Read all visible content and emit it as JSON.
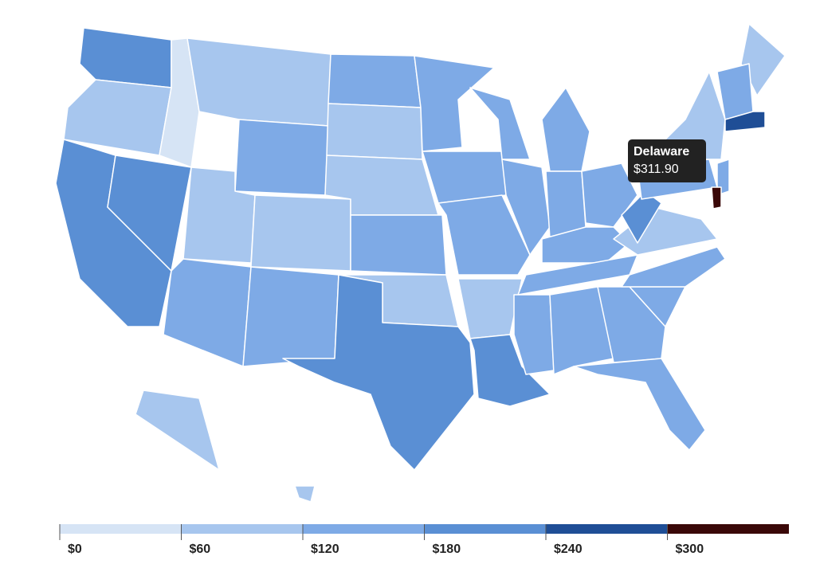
{
  "chart_data": {
    "type": "choropleth",
    "values": [
      205,
      110,
      200,
      190,
      55,
      100,
      130,
      60,
      100,
      140,
      130,
      120,
      100,
      110,
      140,
      100,
      205,
      125,
      120,
      125,
      95,
      200,
      130,
      125,
      135,
      165,
      120,
      135,
      155,
      160,
      175,
      150,
      135,
      165,
      170,
      105,
      180,
      160,
      100,
      280,
      115,
      150,
      140,
      311.9,
      105,
      95
    ],
    "legend": {
      "xlim": [
        0,
        360
      ],
      "bins": [
        0,
        60,
        120,
        180,
        240,
        300,
        360
      ],
      "colors": [
        "#d6e4f5",
        "#a7c6ee",
        "#7eaae6",
        "#5a8fd4",
        "#1f4e96",
        "#3a0808"
      ],
      "ticks": [
        {
          "value": 0,
          "label": "$0"
        },
        {
          "value": 60,
          "label": "$60"
        },
        {
          "value": 120,
          "label": "$120"
        },
        {
          "value": 180,
          "label": "$180"
        },
        {
          "value": 240,
          "label": "$240"
        },
        {
          "value": 300,
          "label": "$300"
        }
      ]
    },
    "tooltip": {
      "label": "Delaware",
      "values": [
        311.9
      ],
      "value_labels": [
        "$311.90"
      ]
    }
  }
}
